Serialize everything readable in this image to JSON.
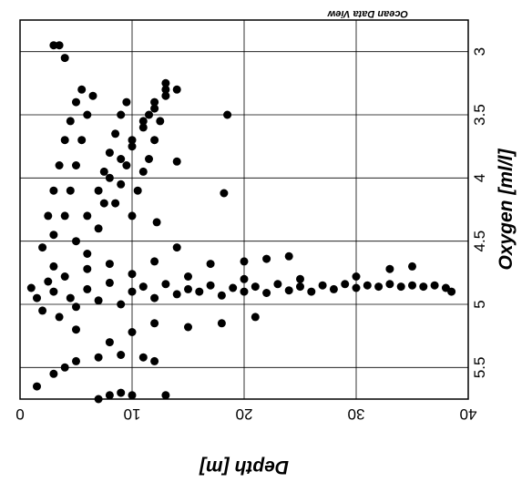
{
  "chart_data": {
    "type": "scatter",
    "watermark": "Ocean Data View",
    "xlabel": "Depth [m]",
    "ylabel": "Oxygen [ml/l]",
    "xlim": [
      0,
      40
    ],
    "ylim": [
      2.75,
      5.75
    ],
    "x_ticks": [
      "0",
      "10",
      "20",
      "30",
      "40"
    ],
    "y_ticks": [
      "3",
      "3.5",
      "4",
      "4.5",
      "5",
      "5.5"
    ],
    "x_tick_values": [
      0,
      10,
      20,
      30,
      40
    ],
    "y_tick_values": [
      3,
      3.5,
      4,
      4.5,
      5,
      5.5
    ],
    "grid": true,
    "orientation": "rotated-180",
    "point_color": "#000000",
    "series": [
      {
        "points": [
          [
            1,
            4.87
          ],
          [
            1.5,
            4.95
          ],
          [
            2,
            5.05
          ],
          [
            2.5,
            4.82
          ],
          [
            3,
            4.9
          ],
          [
            3.5,
            5.1
          ],
          [
            4,
            4.78
          ],
          [
            4.5,
            4.95
          ],
          [
            5,
            5.02
          ],
          [
            6,
            4.88
          ],
          [
            7,
            4.97
          ],
          [
            8,
            4.83
          ],
          [
            9,
            5.0
          ],
          [
            10,
            4.9
          ],
          [
            11,
            4.86
          ],
          [
            12,
            4.95
          ],
          [
            13,
            4.84
          ],
          [
            14,
            4.92
          ],
          [
            15,
            4.88
          ],
          [
            16,
            4.9
          ],
          [
            17,
            4.85
          ],
          [
            18,
            4.93
          ],
          [
            19,
            4.87
          ],
          [
            20,
            4.9
          ],
          [
            21,
            4.86
          ],
          [
            22,
            4.91
          ],
          [
            23,
            4.84
          ],
          [
            24,
            4.89
          ],
          [
            25,
            4.86
          ],
          [
            26,
            4.9
          ],
          [
            27,
            4.85
          ],
          [
            28,
            4.88
          ],
          [
            29,
            4.84
          ],
          [
            30,
            4.87
          ],
          [
            31,
            4.85
          ],
          [
            32,
            4.86
          ],
          [
            33,
            4.84
          ],
          [
            34,
            4.86
          ],
          [
            35,
            4.85
          ],
          [
            36,
            4.86
          ],
          [
            37,
            4.85
          ],
          [
            38,
            4.87
          ],
          [
            38.5,
            4.9
          ],
          [
            3,
            4.7
          ],
          [
            6,
            4.72
          ],
          [
            10,
            4.76
          ],
          [
            15,
            4.78
          ],
          [
            20,
            4.8
          ],
          [
            25,
            4.8
          ],
          [
            30,
            4.78
          ],
          [
            33,
            4.72
          ],
          [
            35,
            4.7
          ],
          [
            8,
            4.68
          ],
          [
            12,
            4.66
          ],
          [
            17,
            4.68
          ],
          [
            20,
            4.66
          ],
          [
            22,
            4.64
          ],
          [
            24,
            4.62
          ],
          [
            5,
            5.2
          ],
          [
            8,
            5.3
          ],
          [
            10,
            5.22
          ],
          [
            12,
            5.15
          ],
          [
            15,
            5.18
          ],
          [
            18,
            5.15
          ],
          [
            21,
            5.1
          ],
          [
            3,
            5.55
          ],
          [
            4,
            5.5
          ],
          [
            5,
            5.45
          ],
          [
            7,
            5.42
          ],
          [
            9,
            5.4
          ],
          [
            11,
            5.42
          ],
          [
            12,
            5.45
          ],
          [
            1.5,
            5.65
          ],
          [
            7,
            5.75
          ],
          [
            8,
            5.72
          ],
          [
            9,
            5.7
          ],
          [
            10,
            5.72
          ],
          [
            13,
            5.72
          ],
          [
            2,
            4.55
          ],
          [
            3,
            4.45
          ],
          [
            4,
            4.3
          ],
          [
            4.5,
            4.1
          ],
          [
            5,
            3.9
          ],
          [
            5.5,
            3.7
          ],
          [
            6,
            3.5
          ],
          [
            6.5,
            3.35
          ],
          [
            2.5,
            4.3
          ],
          [
            3,
            4.1
          ],
          [
            3.5,
            3.9
          ],
          [
            4,
            3.7
          ],
          [
            4.5,
            3.55
          ],
          [
            5,
            3.4
          ],
          [
            5.5,
            3.3
          ],
          [
            5,
            4.5
          ],
          [
            6,
            4.3
          ],
          [
            7,
            4.1
          ],
          [
            7.5,
            3.95
          ],
          [
            8,
            3.8
          ],
          [
            8.5,
            3.65
          ],
          [
            9,
            3.5
          ],
          [
            9.5,
            3.4
          ],
          [
            6,
            4.6
          ],
          [
            7,
            4.4
          ],
          [
            7.5,
            4.2
          ],
          [
            8,
            4.0
          ],
          [
            9,
            3.85
          ],
          [
            10,
            3.7
          ],
          [
            11,
            3.55
          ],
          [
            12,
            3.4
          ],
          [
            13,
            3.3
          ],
          [
            8.5,
            4.2
          ],
          [
            9,
            4.05
          ],
          [
            9.5,
            3.9
          ],
          [
            10,
            3.75
          ],
          [
            11,
            3.6
          ],
          [
            12,
            3.45
          ],
          [
            13,
            3.35
          ],
          [
            14,
            3.3
          ],
          [
            10,
            4.3
          ],
          [
            10.5,
            4.1
          ],
          [
            11,
            3.95
          ],
          [
            11.5,
            3.85
          ],
          [
            12,
            3.7
          ],
          [
            3,
            2.95
          ],
          [
            3.5,
            2.95
          ],
          [
            4,
            3.05
          ],
          [
            18.2,
            4.12
          ],
          [
            18.5,
            3.5
          ],
          [
            11.5,
            3.5
          ],
          [
            12.5,
            3.55
          ],
          [
            14,
            3.87
          ],
          [
            14,
            4.55
          ],
          [
            12.2,
            4.35
          ],
          [
            13,
            3.25
          ]
        ]
      }
    ]
  }
}
